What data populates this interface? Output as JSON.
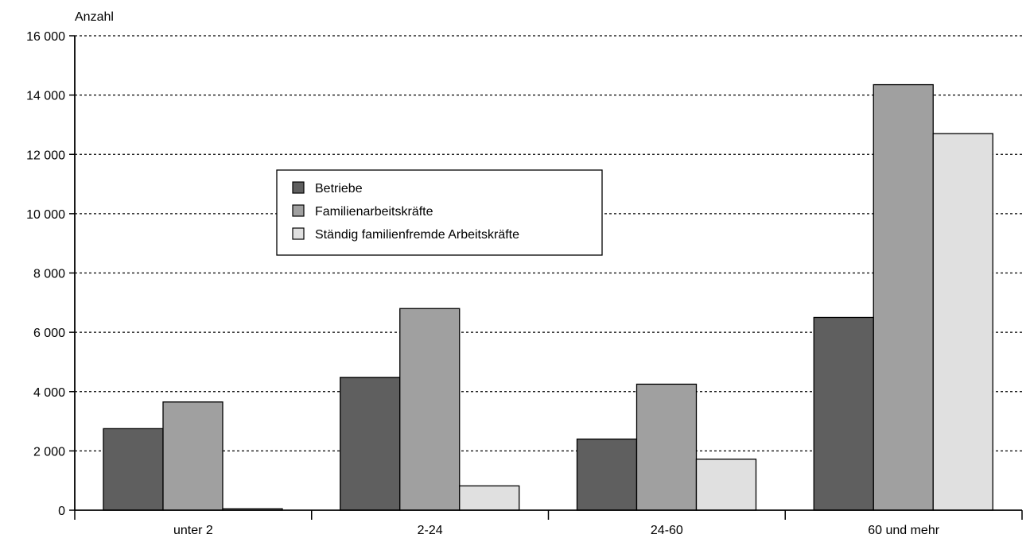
{
  "chart_data": {
    "type": "bar",
    "ylabel": "Anzahl",
    "xlabel": "",
    "categories": [
      "unter 2",
      "2-24",
      "24-60",
      "60 und mehr"
    ],
    "series": [
      {
        "name": "Betriebe",
        "color": "#5f5f5f",
        "values": [
          2750,
          4480,
          2400,
          6500
        ]
      },
      {
        "name": "Familienarbeitskräfte",
        "color": "#a0a0a0",
        "values": [
          3650,
          6800,
          4250,
          14350
        ]
      },
      {
        "name": "Ständig familienfremde Arbeitskräfte",
        "color": "#e0e0e0",
        "values": [
          50,
          820,
          1720,
          12700
        ]
      }
    ],
    "ylim": [
      0,
      16000
    ],
    "yticks": [
      0,
      2000,
      4000,
      6000,
      8000,
      10000,
      12000,
      14000,
      16000
    ],
    "ytick_labels": [
      "0",
      "2 000",
      "4 000",
      "6 000",
      "8 000",
      "10 000",
      "12 000",
      "14 000",
      "16 000"
    ],
    "grid": "horizontal dotted",
    "legend_position": "upper-left-center"
  }
}
